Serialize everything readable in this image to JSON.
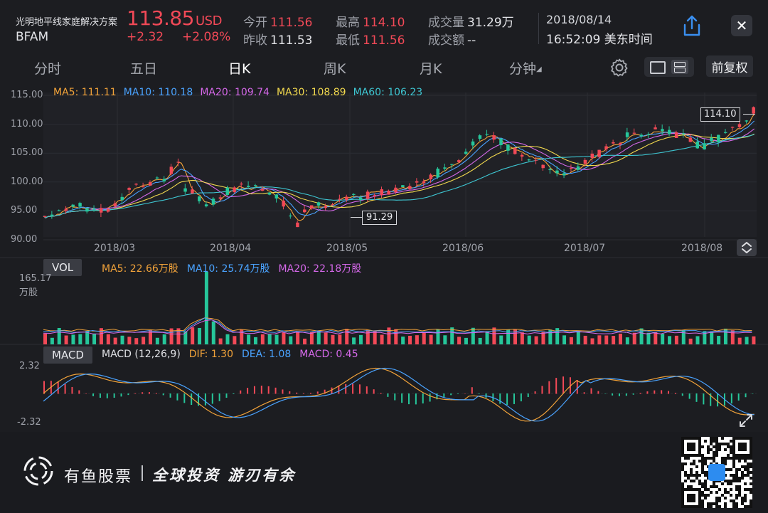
{
  "header": {
    "company_name": "光明地平线家庭解决方案",
    "ticker": "BFAM",
    "price": "113.85",
    "currency": "USD",
    "change": "+2.32",
    "change_pct": "+2.08%",
    "open_label": "今开",
    "open": "111.56",
    "prev_close_label": "昨收",
    "prev_close": "111.53",
    "high_label": "最高",
    "high": "114.10",
    "low_label": "最低",
    "low": "111.56",
    "volume_label": "成交量",
    "volume": "31.29万",
    "turnover_label": "成交额",
    "turnover": "--",
    "date": "2018/08/14",
    "time": "16:52:09 美东时间",
    "close_symbol": "✕"
  },
  "tabs": [
    {
      "label": "分时"
    },
    {
      "label": "五日"
    },
    {
      "label": "日K"
    },
    {
      "label": "周K"
    },
    {
      "label": "月K"
    },
    {
      "label": "分钟"
    }
  ],
  "active_tab": "日K",
  "adjust_button": "前复权",
  "colors": {
    "up": "#f24957",
    "down": "#26c69a",
    "ma5": "#f2a33a",
    "ma10": "#4aa3ff",
    "ma20": "#d468e8",
    "ma30": "#f2d94e",
    "ma60": "#3ec6d2",
    "dif": "#f2a33a",
    "dea": "#4aa3ff",
    "accent": "#2d8cf0"
  },
  "ma_legend": [
    {
      "label": "MA5: 111.11",
      "key": "ma5"
    },
    {
      "label": "MA10: 110.18",
      "key": "ma10"
    },
    {
      "label": "MA20: 109.74",
      "key": "ma20"
    },
    {
      "label": "MA30: 108.89",
      "key": "ma30"
    },
    {
      "label": "MA60: 106.23",
      "key": "ma60"
    }
  ],
  "vol_panel": {
    "tag": "VOL",
    "max_value": "165.17",
    "max_unit": "万股",
    "legend": [
      {
        "label": "MA5: 22.66万股",
        "key": "ma5"
      },
      {
        "label": "MA10: 25.74万股",
        "key": "ma10"
      },
      {
        "label": "MA20: 22.18万股",
        "key": "ma20"
      }
    ]
  },
  "macd_panel": {
    "tag": "MACD",
    "params": "MACD (12,26,9)",
    "top_value": "2.32",
    "bottom_value": "-2.32",
    "legend": [
      {
        "label": "DIF: 1.30",
        "key": "dif"
      },
      {
        "label": "DEA: 1.08",
        "key": "dea"
      },
      {
        "label": "MACD: 0.45",
        "key": "ma20"
      }
    ]
  },
  "chart_data": {
    "type": "candlestick",
    "y_ticks": [
      "115.00",
      "110.00",
      "105.00",
      "100.00",
      "95.00",
      "90.00"
    ],
    "ylim": [
      90,
      115
    ],
    "x_ticks": [
      "2018/03",
      "2018/04",
      "2018/05",
      "2018/06",
      "2018/07",
      "2018/08"
    ],
    "max_marker": "114.10",
    "min_marker": "91.29"
  },
  "footer": {
    "brand": "有鱼股票",
    "slogan": "全球投资  游刃有余"
  }
}
